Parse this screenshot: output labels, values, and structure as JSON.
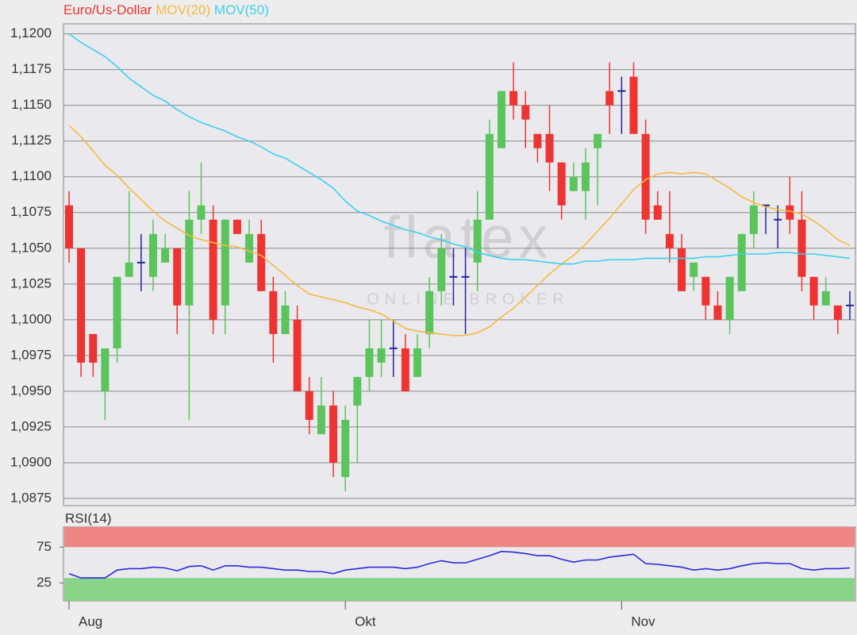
{
  "watermark": {
    "name": "flatex",
    "tagline": "ONLINE BROKER"
  },
  "chart_data": [
    {
      "type": "candlestick",
      "categories": [
        "Aug",
        null,
        null,
        null,
        null,
        null,
        null,
        null,
        null,
        null,
        null,
        null,
        null,
        null,
        null,
        null,
        null,
        null,
        null,
        null,
        null,
        null,
        null,
        "Okt",
        null,
        null,
        null,
        null,
        null,
        null,
        null,
        null,
        null,
        null,
        null,
        null,
        null,
        null,
        null,
        null,
        null,
        null,
        null,
        null,
        null,
        null,
        "Nov",
        null,
        null,
        null,
        null,
        null,
        null,
        null,
        null,
        null,
        null,
        null,
        null,
        null,
        null,
        null,
        null,
        null,
        null,
        null
      ],
      "series": [
        {
          "name": "Euro/Us-Dollar",
          "color": "#ee3333",
          "up_color": "#5cc45c",
          "doji_color": "#22229a",
          "open": [
            1.108,
            1.105,
            1.099,
            1.095,
            1.098,
            1.103,
            1.104,
            1.103,
            1.104,
            1.105,
            1.101,
            1.107,
            1.107,
            1.101,
            1.107,
            1.104,
            1.106,
            1.102,
            1.099,
            1.1,
            1.095,
            1.092,
            1.094,
            1.089,
            1.094,
            1.096,
            1.097,
            1.098,
            1.098,
            1.096,
            1.099,
            1.102,
            1.103,
            1.103,
            1.104,
            1.107,
            1.112,
            1.116,
            1.115,
            1.113,
            1.113,
            1.111,
            1.109,
            1.109,
            1.112,
            1.116,
            1.116,
            1.117,
            1.113,
            1.108,
            1.106,
            1.105,
            1.103,
            1.103,
            1.101,
            1.1,
            1.102,
            1.106,
            1.108,
            1.107,
            1.108,
            1.107,
            1.103,
            1.101,
            1.101,
            1.101
          ],
          "high": [
            1.109,
            1.105,
            1.099,
            1.098,
            1.103,
            1.109,
            1.106,
            1.107,
            1.106,
            1.105,
            1.109,
            1.111,
            1.108,
            1.107,
            1.107,
            1.107,
            1.107,
            1.103,
            1.102,
            1.101,
            1.096,
            1.096,
            1.095,
            1.094,
            1.096,
            1.1,
            1.1,
            1.1,
            1.099,
            1.099,
            1.103,
            1.106,
            1.105,
            1.105,
            1.109,
            1.114,
            1.116,
            1.118,
            1.116,
            1.113,
            1.115,
            1.111,
            1.111,
            1.112,
            1.113,
            1.118,
            1.117,
            1.118,
            1.114,
            1.109,
            1.109,
            1.106,
            1.104,
            1.103,
            1.102,
            1.103,
            1.106,
            1.109,
            1.108,
            1.108,
            1.11,
            1.109,
            1.103,
            1.103,
            1.101,
            1.102
          ],
          "low": [
            1.104,
            1.096,
            1.096,
            1.093,
            1.097,
            1.103,
            1.102,
            1.102,
            1.104,
            1.099,
            1.093,
            1.106,
            1.099,
            1.099,
            1.106,
            1.104,
            1.102,
            1.097,
            1.099,
            1.095,
            1.092,
            1.092,
            1.089,
            1.088,
            1.09,
            1.095,
            1.096,
            1.096,
            1.095,
            1.096,
            1.098,
            1.101,
            1.101,
            1.099,
            1.102,
            1.107,
            1.112,
            1.114,
            1.112,
            1.111,
            1.109,
            1.107,
            1.109,
            1.107,
            1.108,
            1.113,
            1.113,
            1.113,
            1.106,
            1.107,
            1.104,
            1.102,
            1.102,
            1.1,
            1.1,
            1.099,
            1.102,
            1.105,
            1.106,
            1.105,
            1.106,
            1.102,
            1.1,
            1.101,
            1.099,
            1.1
          ],
          "close": [
            1.105,
            1.097,
            1.097,
            1.098,
            1.103,
            1.104,
            1.104,
            1.106,
            1.105,
            1.101,
            1.107,
            1.108,
            1.1,
            1.107,
            1.106,
            1.106,
            1.102,
            1.099,
            1.101,
            1.095,
            1.093,
            1.094,
            1.09,
            1.093,
            1.096,
            1.098,
            1.098,
            1.098,
            1.095,
            1.098,
            1.102,
            1.105,
            1.103,
            1.103,
            1.107,
            1.113,
            1.116,
            1.115,
            1.114,
            1.112,
            1.111,
            1.108,
            1.11,
            1.111,
            1.113,
            1.115,
            1.116,
            1.113,
            1.107,
            1.107,
            1.105,
            1.102,
            1.104,
            1.101,
            1.1,
            1.103,
            1.106,
            1.108,
            1.108,
            1.107,
            1.107,
            1.103,
            1.101,
            1.102,
            1.1,
            1.101
          ]
        },
        {
          "name": "MOV(20)",
          "color": "#f5b942",
          "values": [
            1.1136,
            1.1128,
            1.1118,
            1.1108,
            1.1101,
            1.1092,
            1.1084,
            1.1076,
            1.1069,
            1.1064,
            1.1059,
            1.1056,
            1.1054,
            1.1052,
            1.1051,
            1.1048,
            1.1045,
            1.1038,
            1.1031,
            1.1024,
            1.1018,
            1.1016,
            1.1014,
            1.1012,
            1.1009,
            1.1007,
            1.1004,
            1.0999,
            1.0994,
            1.0992,
            1.0991,
            1.099,
            1.0989,
            1.0989,
            1.0991,
            1.0995,
            1.1002,
            1.1008,
            1.1016,
            1.1024,
            1.1032,
            1.1039,
            1.1045,
            1.1053,
            1.1062,
            1.1071,
            1.1081,
            1.1091,
            1.1098,
            1.1102,
            1.1103,
            1.1102,
            1.1103,
            1.1102,
            1.1097,
            1.1092,
            1.1086,
            1.1082,
            1.1079,
            1.1077,
            1.1076,
            1.1074,
            1.1069,
            1.1063,
            1.1056,
            1.1052
          ]
        },
        {
          "name": "MOV(50)",
          "color": "#3cd0ee",
          "values": [
            1.12,
            1.1194,
            1.1189,
            1.1184,
            1.1177,
            1.1169,
            1.1163,
            1.1157,
            1.1153,
            1.1147,
            1.1142,
            1.1138,
            1.1135,
            1.1132,
            1.1128,
            1.1125,
            1.1121,
            1.1116,
            1.1113,
            1.1108,
            1.1103,
            1.1098,
            1.1092,
            1.1083,
            1.1076,
            1.1073,
            1.1069,
            1.1066,
            1.1063,
            1.1061,
            1.1058,
            1.1056,
            1.1053,
            1.1051,
            1.1047,
            1.1045,
            1.1043,
            1.1042,
            1.1042,
            1.1041,
            1.104,
            1.1039,
            1.1039,
            1.1041,
            1.1041,
            1.1042,
            1.1042,
            1.1042,
            1.1043,
            1.1043,
            1.1043,
            1.1043,
            1.1043,
            1.1044,
            1.1044,
            1.1045,
            1.1046,
            1.1046,
            1.1046,
            1.1047,
            1.1047,
            1.1046,
            1.1046,
            1.1045,
            1.1044,
            1.1043
          ]
        }
      ],
      "ylim": [
        1.087,
        1.1207
      ],
      "yticks": [
        {
          "value": 1.0875,
          "label": "1,0875"
        },
        {
          "value": 1.09,
          "label": "1,0900"
        },
        {
          "value": 1.0925,
          "label": "1,0925"
        },
        {
          "value": 1.095,
          "label": "1,0950"
        },
        {
          "value": 1.0975,
          "label": "1,0975"
        },
        {
          "value": 1.1,
          "label": "1,1000"
        },
        {
          "value": 1.1025,
          "label": "1,1025"
        },
        {
          "value": 1.105,
          "label": "1,1050"
        },
        {
          "value": 1.1075,
          "label": "1,1075"
        },
        {
          "value": 1.11,
          "label": "1,1100"
        },
        {
          "value": 1.1125,
          "label": "1,1125"
        },
        {
          "value": 1.115,
          "label": "1,1150"
        },
        {
          "value": 1.1175,
          "label": "1,1175"
        },
        {
          "value": 1.12,
          "label": "1,1200"
        }
      ],
      "grid": true
    },
    {
      "type": "line",
      "title": "RSI(14)",
      "color": "#2a2ad8",
      "values": [
        38,
        32,
        32,
        32,
        43,
        45,
        45,
        47,
        46,
        42,
        48,
        49,
        43,
        49,
        49,
        47,
        47,
        45,
        43,
        43,
        41,
        41,
        38,
        43,
        45,
        47,
        47,
        47,
        45,
        47,
        52,
        56,
        53,
        53,
        58,
        63,
        69,
        68,
        66,
        63,
        63,
        58,
        54,
        57,
        57,
        61,
        63,
        65,
        52,
        51,
        49,
        47,
        43,
        45,
        43,
        45,
        49,
        52,
        53,
        52,
        52,
        45,
        43,
        45,
        45,
        46
      ],
      "ylim": [
        0,
        103
      ],
      "yticks": [
        25,
        75
      ],
      "bands": [
        {
          "from": 75,
          "to": 103,
          "color": "#f08585"
        },
        {
          "from": 0,
          "to": 32,
          "color": "#8ad48a"
        }
      ]
    }
  ]
}
